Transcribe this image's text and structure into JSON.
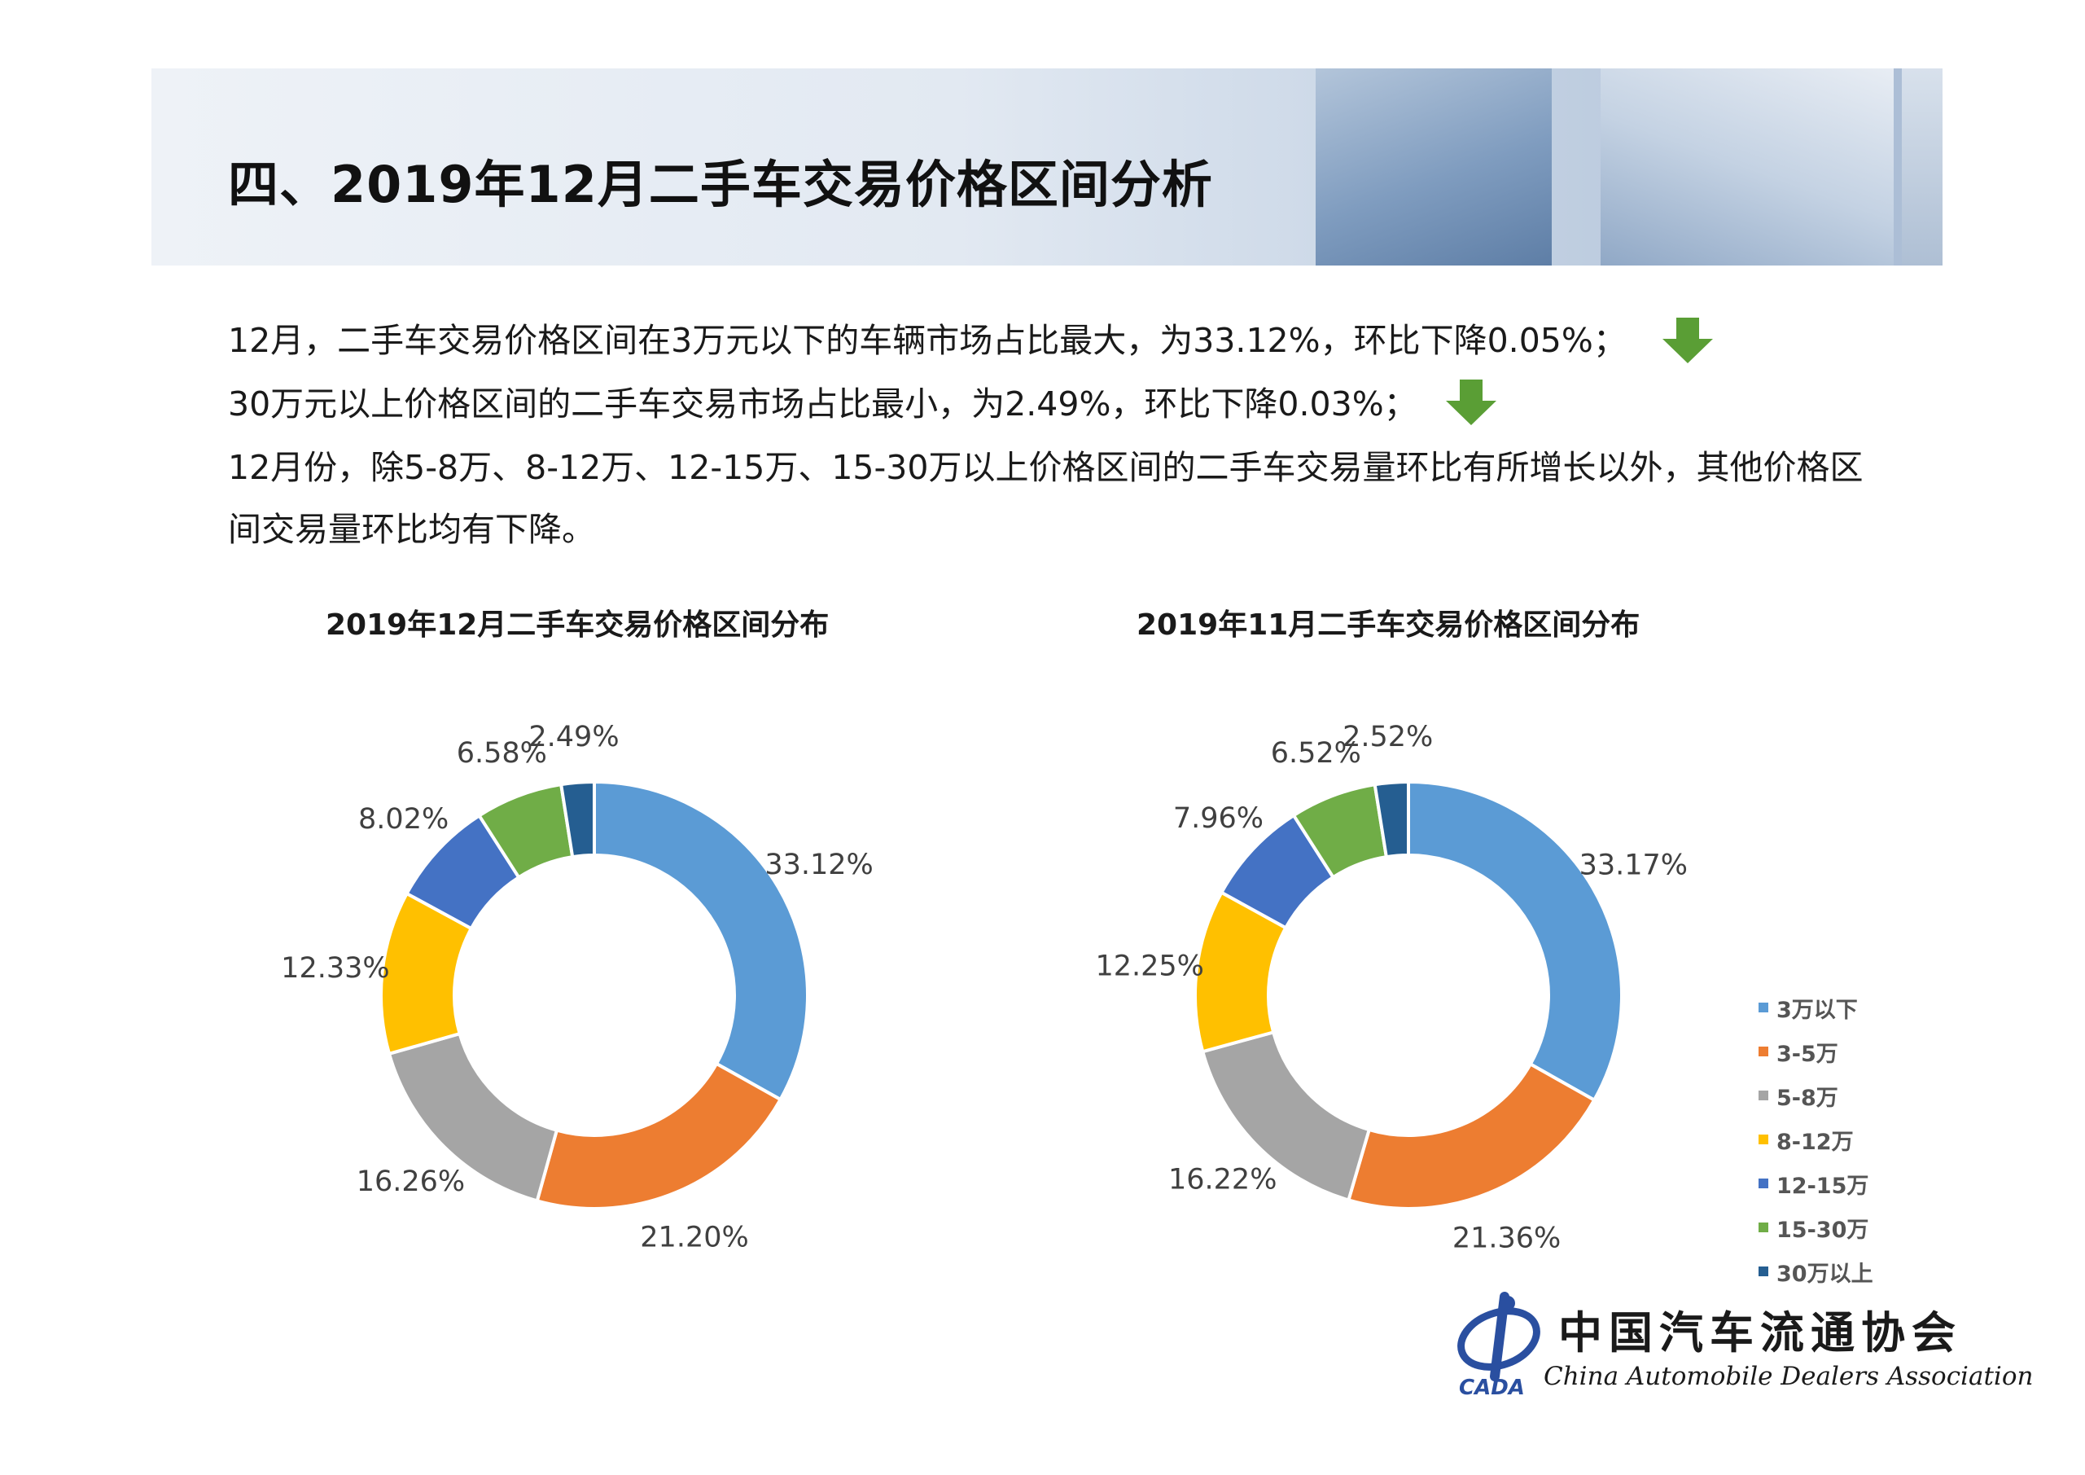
{
  "page": {
    "section_title": "四、2019年12月二手车交易价格区间分析",
    "paragraphs": [
      "12月，二手车交易价格区间在3万元以下的车辆市场占比最大，为33.12%，环比下降0.05%；",
      "30万元以上价格区间的二手车交易市场占比最小，为2.49%，环比下降0.03%；",
      "12月份，除5-8万、8-12万、12-15万、15-30万以上价格区间的二手车交易量环比有所增长以外，其他价格区",
      "间交易量环比均有下降。"
    ],
    "trend_icon": "down-arrow-icon",
    "trend_color": "#5a9e35"
  },
  "chart_data": [
    {
      "type": "pie",
      "title": "2019年12月二手车交易价格区间分布",
      "categories": [
        "3万以下",
        "3-5万",
        "5-8万",
        "8-12万",
        "12-15万",
        "15-30万",
        "30万以上"
      ],
      "values": [
        33.12,
        21.2,
        16.26,
        12.33,
        8.02,
        6.58,
        2.49
      ],
      "labels": [
        "33.12%",
        "21.20%",
        "16.26%",
        "12.33%",
        "8.02%",
        "6.58%",
        "2.49%"
      ],
      "colors": [
        "#5b9bd5",
        "#ed7d31",
        "#a5a5a5",
        "#ffc000",
        "#4472c4",
        "#70ad47",
        "#255e91"
      ]
    },
    {
      "type": "pie",
      "title": "2019年11月二手车交易价格区间分布",
      "categories": [
        "3万以下",
        "3-5万",
        "5-8万",
        "8-12万",
        "12-15万",
        "15-30万",
        "30万以上"
      ],
      "values": [
        33.17,
        21.36,
        16.22,
        12.25,
        7.96,
        6.52,
        2.52
      ],
      "labels": [
        "33.17%",
        "21.36%",
        "16.22%",
        "12.25%",
        "7.96%",
        "6.52%",
        "2.52%"
      ],
      "colors": [
        "#5b9bd5",
        "#ed7d31",
        "#a5a5a5",
        "#ffc000",
        "#4472c4",
        "#70ad47",
        "#255e91"
      ],
      "legend_position": "right"
    }
  ],
  "logo": {
    "cn": "中国汽车流通协会",
    "en": "China Automobile Dealers Association",
    "abbr": "CADA"
  }
}
